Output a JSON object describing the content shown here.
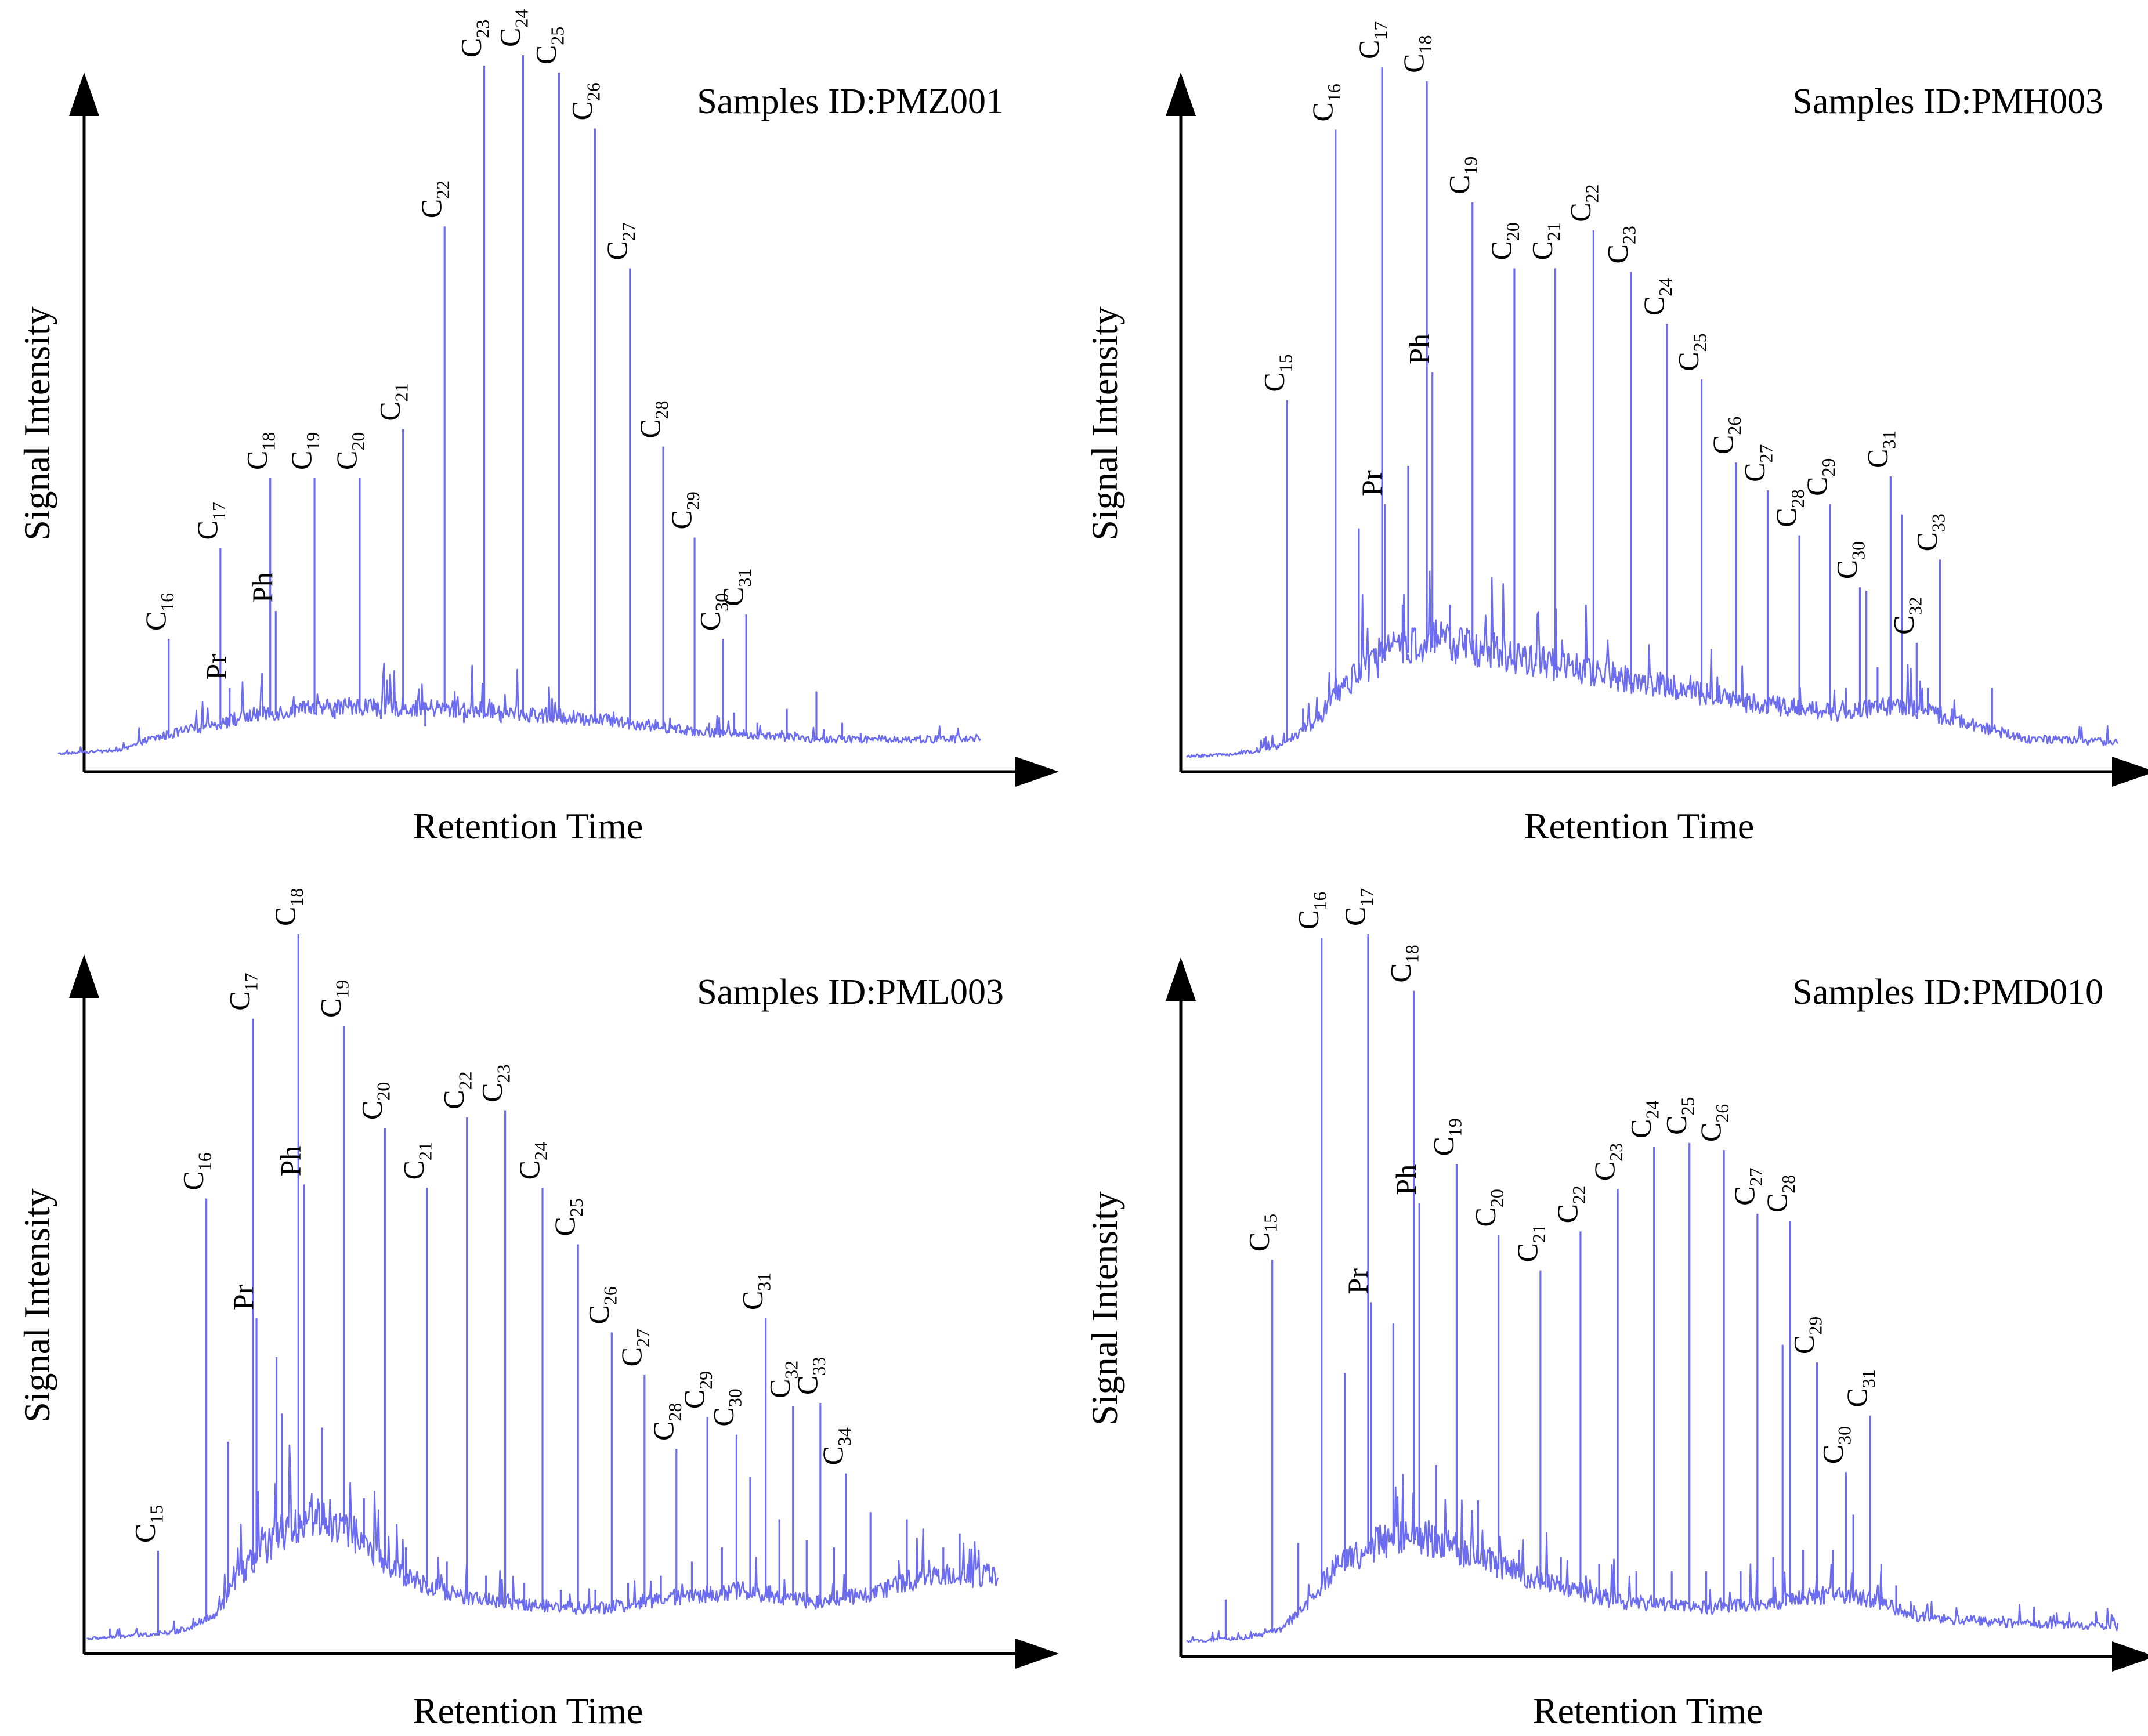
{
  "figure": {
    "panels_count": 4
  },
  "chart_data": [
    {
      "type": "line",
      "title": "Samples ID:PMZ001",
      "xlabel": "Retention Time",
      "ylabel": "Signal Intensity",
      "grid": false,
      "trace_color": "#6c6cf0",
      "x_range": [
        0,
        1
      ],
      "y_range": [
        0,
        1
      ],
      "baseline": [
        [
          0.0,
          0.0
        ],
        [
          0.07,
          0.005
        ],
        [
          0.1,
          0.02
        ],
        [
          0.15,
          0.035
        ],
        [
          0.22,
          0.055
        ],
        [
          0.32,
          0.065
        ],
        [
          0.45,
          0.06
        ],
        [
          0.6,
          0.045
        ],
        [
          0.7,
          0.03
        ],
        [
          0.82,
          0.02
        ],
        [
          0.96,
          0.02
        ],
        [
          1.0,
          0.02
        ]
      ],
      "peaks": [
        {
          "label": "C",
          "sub": "16",
          "x": 0.12,
          "y": 0.165
        },
        {
          "label": "C",
          "sub": "17",
          "x": 0.176,
          "y": 0.295
        },
        {
          "label": "Pr",
          "sub": "",
          "x": 0.186,
          "y": 0.095
        },
        {
          "label": "C",
          "sub": "18",
          "x": 0.23,
          "y": 0.395
        },
        {
          "label": "Ph",
          "sub": "",
          "x": 0.236,
          "y": 0.205
        },
        {
          "label": "C",
          "sub": "19",
          "x": 0.278,
          "y": 0.395
        },
        {
          "label": "C",
          "sub": "20",
          "x": 0.327,
          "y": 0.395
        },
        {
          "label": "C",
          "sub": "21",
          "x": 0.374,
          "y": 0.465
        },
        {
          "label": "C",
          "sub": "22",
          "x": 0.419,
          "y": 0.755
        },
        {
          "label": "C",
          "sub": "23",
          "x": 0.462,
          "y": 0.985
        },
        {
          "label": "C",
          "sub": "24",
          "x": 0.504,
          "y": 1.0
        },
        {
          "label": "C",
          "sub": "25",
          "x": 0.543,
          "y": 0.975
        },
        {
          "label": "C",
          "sub": "26",
          "x": 0.582,
          "y": 0.895
        },
        {
          "label": "C",
          "sub": "27",
          "x": 0.62,
          "y": 0.695
        },
        {
          "label": "C",
          "sub": "28",
          "x": 0.656,
          "y": 0.44
        },
        {
          "label": "C",
          "sub": "29",
          "x": 0.69,
          "y": 0.31
        },
        {
          "label": "C",
          "sub": "30",
          "x": 0.721,
          "y": 0.165
        },
        {
          "label": "C",
          "sub": "31",
          "x": 0.746,
          "y": 0.2
        }
      ],
      "minor_peaks": [
        [
          0.148,
          0.035
        ],
        [
          0.205,
          0.06
        ],
        [
          0.254,
          0.07
        ],
        [
          0.3,
          0.05
        ],
        [
          0.35,
          0.05
        ],
        [
          0.398,
          0.04
        ],
        [
          0.44,
          0.045
        ],
        [
          0.48,
          0.045
        ],
        [
          0.523,
          0.05
        ],
        [
          0.562,
          0.055
        ],
        [
          0.6,
          0.045
        ],
        [
          0.64,
          0.04
        ],
        [
          0.674,
          0.03
        ],
        [
          0.706,
          0.045
        ],
        [
          0.733,
          0.06
        ],
        [
          0.758,
          0.045
        ],
        [
          0.79,
          0.065
        ],
        [
          0.822,
          0.09
        ],
        [
          0.85,
          0.045
        ],
        [
          0.87,
          0.03
        ],
        [
          0.9,
          0.02
        ]
      ]
    },
    {
      "type": "line",
      "title": "Samples ID:PMH003",
      "xlabel": "Retention Time",
      "ylabel": "Signal Intensity",
      "grid": false,
      "trace_color": "#6c6cf0",
      "x_range": [
        0,
        1
      ],
      "y_range": [
        0,
        1
      ],
      "baseline": [
        [
          0.0,
          0.0
        ],
        [
          0.06,
          0.005
        ],
        [
          0.1,
          0.015
        ],
        [
          0.14,
          0.05
        ],
        [
          0.17,
          0.1
        ],
        [
          0.22,
          0.145
        ],
        [
          0.27,
          0.16
        ],
        [
          0.32,
          0.145
        ],
        [
          0.4,
          0.125
        ],
        [
          0.5,
          0.1
        ],
        [
          0.6,
          0.075
        ],
        [
          0.7,
          0.06
        ],
        [
          0.76,
          0.07
        ],
        [
          0.8,
          0.06
        ],
        [
          0.84,
          0.045
        ],
        [
          0.9,
          0.025
        ],
        [
          1.0,
          0.02
        ]
      ],
      "peaks": [
        {
          "label": "C",
          "sub": "15",
          "x": 0.108,
          "y": 0.515
        },
        {
          "label": "C",
          "sub": "16",
          "x": 0.16,
          "y": 0.905
        },
        {
          "label": "C",
          "sub": "17",
          "x": 0.21,
          "y": 0.995
        },
        {
          "label": "Pr",
          "sub": "",
          "x": 0.213,
          "y": 0.365
        },
        {
          "label": "C",
          "sub": "18",
          "x": 0.258,
          "y": 0.975
        },
        {
          "label": "Ph",
          "sub": "",
          "x": 0.264,
          "y": 0.555
        },
        {
          "label": "C",
          "sub": "19",
          "x": 0.307,
          "y": 0.8
        },
        {
          "label": "C",
          "sub": "20",
          "x": 0.352,
          "y": 0.705
        },
        {
          "label": "C",
          "sub": "21",
          "x": 0.396,
          "y": 0.705
        },
        {
          "label": "C",
          "sub": "22",
          "x": 0.437,
          "y": 0.76
        },
        {
          "label": "C",
          "sub": "23",
          "x": 0.477,
          "y": 0.7
        },
        {
          "label": "C",
          "sub": "24",
          "x": 0.516,
          "y": 0.625
        },
        {
          "label": "C",
          "sub": "25",
          "x": 0.553,
          "y": 0.545
        },
        {
          "label": "C",
          "sub": "26",
          "x": 0.59,
          "y": 0.425
        },
        {
          "label": "C",
          "sub": "27",
          "x": 0.624,
          "y": 0.385
        },
        {
          "label": "C",
          "sub": "28",
          "x": 0.658,
          "y": 0.32
        },
        {
          "label": "C",
          "sub": "29",
          "x": 0.691,
          "y": 0.365
        },
        {
          "label": "C",
          "sub": "30",
          "x": 0.723,
          "y": 0.245
        },
        {
          "label": "C",
          "sub": "31",
          "x": 0.756,
          "y": 0.405
        },
        {
          "label": "C",
          "sub": "32",
          "x": 0.784,
          "y": 0.165
        },
        {
          "label": "C",
          "sub": "33",
          "x": 0.809,
          "y": 0.285
        }
      ],
      "minor_peaks": [
        [
          0.085,
          0.03
        ],
        [
          0.125,
          0.07
        ],
        [
          0.185,
          0.33
        ],
        [
          0.238,
          0.42
        ],
        [
          0.232,
          0.22
        ],
        [
          0.283,
          0.22
        ],
        [
          0.33,
          0.18
        ],
        [
          0.375,
          0.15
        ],
        [
          0.418,
          0.13
        ],
        [
          0.458,
          0.12
        ],
        [
          0.497,
          0.1
        ],
        [
          0.535,
          0.09
        ],
        [
          0.572,
          0.08
        ],
        [
          0.608,
          0.07
        ],
        [
          0.642,
          0.075
        ],
        [
          0.676,
          0.08
        ],
        [
          0.708,
          0.1
        ],
        [
          0.73,
          0.24
        ],
        [
          0.742,
          0.13
        ],
        [
          0.768,
          0.35
        ],
        [
          0.796,
          0.1
        ],
        [
          0.822,
          0.07
        ],
        [
          0.865,
          0.1
        ],
        [
          0.895,
          0.03
        ],
        [
          0.92,
          0.025
        ],
        [
          0.95,
          0.02
        ]
      ]
    },
    {
      "type": "line",
      "title": "Samples ID:PML003",
      "xlabel": "Retention Time",
      "ylabel": "Signal Intensity",
      "grid": false,
      "trace_color": "#6c6cf0",
      "x_range": [
        0,
        1
      ],
      "y_range": [
        0,
        1
      ],
      "baseline": [
        [
          0.0,
          0.0
        ],
        [
          0.06,
          0.005
        ],
        [
          0.1,
          0.01
        ],
        [
          0.14,
          0.03
        ],
        [
          0.17,
          0.09
        ],
        [
          0.21,
          0.14
        ],
        [
          0.25,
          0.17
        ],
        [
          0.29,
          0.145
        ],
        [
          0.34,
          0.09
        ],
        [
          0.4,
          0.06
        ],
        [
          0.48,
          0.045
        ],
        [
          0.56,
          0.04
        ],
        [
          0.64,
          0.055
        ],
        [
          0.72,
          0.065
        ],
        [
          0.8,
          0.05
        ],
        [
          0.86,
          0.06
        ],
        [
          0.92,
          0.085
        ],
        [
          1.0,
          0.085
        ]
      ],
      "peaks": [
        {
          "label": "C",
          "sub": "15",
          "x": 0.078,
          "y": 0.125
        },
        {
          "label": "C",
          "sub": "16",
          "x": 0.131,
          "y": 0.625
        },
        {
          "label": "C",
          "sub": "17",
          "x": 0.182,
          "y": 0.88
        },
        {
          "label": "Pr",
          "sub": "",
          "x": 0.186,
          "y": 0.455
        },
        {
          "label": "C",
          "sub": "18",
          "x": 0.232,
          "y": 1.0
        },
        {
          "label": "Ph",
          "sub": "",
          "x": 0.238,
          "y": 0.645
        },
        {
          "label": "C",
          "sub": "19",
          "x": 0.282,
          "y": 0.87
        },
        {
          "label": "C",
          "sub": "20",
          "x": 0.327,
          "y": 0.725
        },
        {
          "label": "C",
          "sub": "21",
          "x": 0.373,
          "y": 0.64
        },
        {
          "label": "C",
          "sub": "22",
          "x": 0.417,
          "y": 0.74
        },
        {
          "label": "C",
          "sub": "23",
          "x": 0.459,
          "y": 0.75
        },
        {
          "label": "C",
          "sub": "24",
          "x": 0.5,
          "y": 0.64
        },
        {
          "label": "C",
          "sub": "25",
          "x": 0.539,
          "y": 0.56
        },
        {
          "label": "C",
          "sub": "26",
          "x": 0.576,
          "y": 0.435
        },
        {
          "label": "C",
          "sub": "27",
          "x": 0.612,
          "y": 0.375
        },
        {
          "label": "C",
          "sub": "28",
          "x": 0.647,
          "y": 0.27
        },
        {
          "label": "C",
          "sub": "29",
          "x": 0.681,
          "y": 0.315
        },
        {
          "label": "C",
          "sub": "30",
          "x": 0.713,
          "y": 0.29
        },
        {
          "label": "C",
          "sub": "31",
          "x": 0.745,
          "y": 0.455
        },
        {
          "label": "C",
          "sub": "32",
          "x": 0.775,
          "y": 0.33
        },
        {
          "label": "C",
          "sub": "33",
          "x": 0.805,
          "y": 0.335
        },
        {
          "label": "C",
          "sub": "34",
          "x": 0.833,
          "y": 0.235
        }
      ],
      "minor_peaks": [
        [
          0.025,
          0.015
        ],
        [
          0.155,
          0.28
        ],
        [
          0.208,
          0.4
        ],
        [
          0.214,
          0.32
        ],
        [
          0.258,
          0.3
        ],
        [
          0.304,
          0.2
        ],
        [
          0.35,
          0.13
        ],
        [
          0.395,
          0.11
        ],
        [
          0.438,
          0.09
        ],
        [
          0.48,
          0.08
        ],
        [
          0.52,
          0.07
        ],
        [
          0.558,
          0.07
        ],
        [
          0.594,
          0.08
        ],
        [
          0.63,
          0.09
        ],
        [
          0.664,
          0.11
        ],
        [
          0.697,
          0.13
        ],
        [
          0.728,
          0.23
        ],
        [
          0.76,
          0.17
        ],
        [
          0.79,
          0.14
        ],
        [
          0.82,
          0.13
        ],
        [
          0.86,
          0.18
        ],
        [
          0.9,
          0.17
        ],
        [
          0.94,
          0.13
        ],
        [
          0.958,
          0.15
        ]
      ]
    },
    {
      "type": "line",
      "title": "Samples ID:PMD010",
      "xlabel": "Retention Time",
      "ylabel": "Signal Intensity",
      "grid": false,
      "trace_color": "#6c6cf0",
      "x_range": [
        0,
        1
      ],
      "y_range": [
        0,
        1
      ],
      "baseline": [
        [
          0.0,
          0.0
        ],
        [
          0.06,
          0.005
        ],
        [
          0.1,
          0.015
        ],
        [
          0.13,
          0.05
        ],
        [
          0.16,
          0.1
        ],
        [
          0.21,
          0.135
        ],
        [
          0.26,
          0.14
        ],
        [
          0.31,
          0.115
        ],
        [
          0.38,
          0.08
        ],
        [
          0.46,
          0.055
        ],
        [
          0.56,
          0.045
        ],
        [
          0.64,
          0.055
        ],
        [
          0.7,
          0.065
        ],
        [
          0.74,
          0.055
        ],
        [
          0.78,
          0.035
        ],
        [
          0.82,
          0.03
        ],
        [
          0.88,
          0.025
        ],
        [
          1.0,
          0.02
        ]
      ],
      "peaks": [
        {
          "label": "C",
          "sub": "15",
          "x": 0.092,
          "y": 0.54
        },
        {
          "label": "C",
          "sub": "16",
          "x": 0.145,
          "y": 0.995
        },
        {
          "label": "C",
          "sub": "17",
          "x": 0.195,
          "y": 1.0
        },
        {
          "label": "Pr",
          "sub": "",
          "x": 0.198,
          "y": 0.48
        },
        {
          "label": "C",
          "sub": "18",
          "x": 0.244,
          "y": 0.92
        },
        {
          "label": "Ph",
          "sub": "",
          "x": 0.25,
          "y": 0.62
        },
        {
          "label": "C",
          "sub": "19",
          "x": 0.29,
          "y": 0.675
        },
        {
          "label": "C",
          "sub": "20",
          "x": 0.335,
          "y": 0.575
        },
        {
          "label": "C",
          "sub": "21",
          "x": 0.38,
          "y": 0.525
        },
        {
          "label": "C",
          "sub": "22",
          "x": 0.423,
          "y": 0.58
        },
        {
          "label": "C",
          "sub": "23",
          "x": 0.463,
          "y": 0.64
        },
        {
          "label": "C",
          "sub": "24",
          "x": 0.502,
          "y": 0.7
        },
        {
          "label": "C",
          "sub": "25",
          "x": 0.54,
          "y": 0.705
        },
        {
          "label": "C",
          "sub": "26",
          "x": 0.577,
          "y": 0.695
        },
        {
          "label": "C",
          "sub": "27",
          "x": 0.613,
          "y": 0.605
        },
        {
          "label": "C",
          "sub": "28",
          "x": 0.648,
          "y": 0.595
        },
        {
          "label": "C",
          "sub": "29",
          "x": 0.677,
          "y": 0.395
        },
        {
          "label": "C",
          "sub": "30",
          "x": 0.708,
          "y": 0.24
        },
        {
          "label": "C",
          "sub": "31",
          "x": 0.734,
          "y": 0.32
        }
      ],
      "minor_peaks": [
        [
          0.042,
          0.06
        ],
        [
          0.12,
          0.14
        ],
        [
          0.17,
          0.38
        ],
        [
          0.222,
          0.45
        ],
        [
          0.268,
          0.25
        ],
        [
          0.313,
          0.2
        ],
        [
          0.357,
          0.13
        ],
        [
          0.402,
          0.12
        ],
        [
          0.443,
          0.11
        ],
        [
          0.483,
          0.1
        ],
        [
          0.521,
          0.1
        ],
        [
          0.558,
          0.1
        ],
        [
          0.595,
          0.1
        ],
        [
          0.63,
          0.12
        ],
        [
          0.64,
          0.42
        ],
        [
          0.662,
          0.13
        ],
        [
          0.694,
          0.13
        ],
        [
          0.716,
          0.18
        ],
        [
          0.746,
          0.11
        ],
        [
          0.762,
          0.08
        ],
        [
          0.8,
          0.055
        ],
        [
          0.84,
          0.03
        ],
        [
          0.88,
          0.02
        ]
      ]
    }
  ]
}
